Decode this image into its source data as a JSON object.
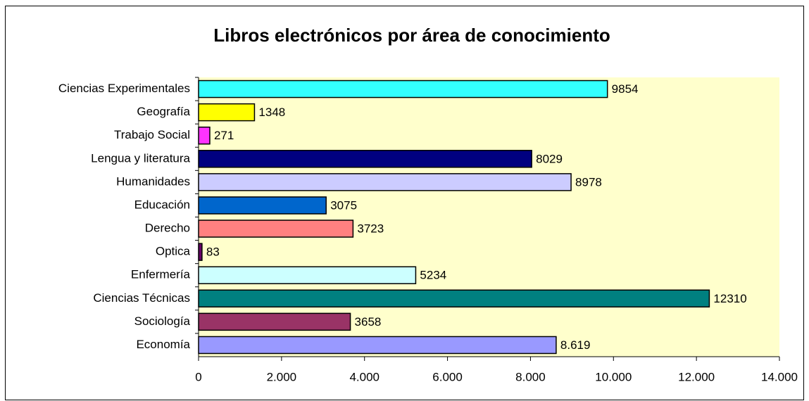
{
  "chart_data": {
    "type": "bar",
    "orientation": "horizontal",
    "title": "Libros electrónicos por área de conocimiento",
    "categories": [
      "Ciencias Experimentales",
      "Geografía",
      "Trabajo Social",
      "Lengua y literatura",
      "Humanidades",
      "Educación",
      "Derecho",
      "Optica",
      "Enfermería",
      "Ciencias Técnicas",
      "Sociología",
      "Economía"
    ],
    "values": [
      9854,
      1348,
      271,
      8029,
      8978,
      3075,
      3723,
      83,
      5234,
      12310,
      3658,
      8619
    ],
    "value_labels": [
      "9854",
      "1348",
      "271",
      "8029",
      "8978",
      "3075",
      "3723",
      "83",
      "5234",
      "12310",
      "3658",
      "8.619"
    ],
    "colors": [
      "#33ffff",
      "#ffff00",
      "#ff33ff",
      "#000080",
      "#ccccff",
      "#0066cc",
      "#ff8080",
      "#660066",
      "#ccffff",
      "#008080",
      "#993366",
      "#9999ff"
    ],
    "xlim": [
      0,
      14000
    ],
    "xticks": [
      0,
      {
        "value": 2000,
        "label": "2.000"
      },
      {
        "value": 4000,
        "label": "4.000"
      },
      {
        "value": 6000,
        "label": "6.000"
      },
      {
        "value": 8000,
        "label": "8.000"
      },
      {
        "value": 10000,
        "label": "10.000"
      },
      {
        "value": 12000,
        "label": "12.000"
      },
      {
        "value": 14000,
        "label": "14.000"
      }
    ],
    "plot_background": "#ffffcc",
    "grid": false
  }
}
